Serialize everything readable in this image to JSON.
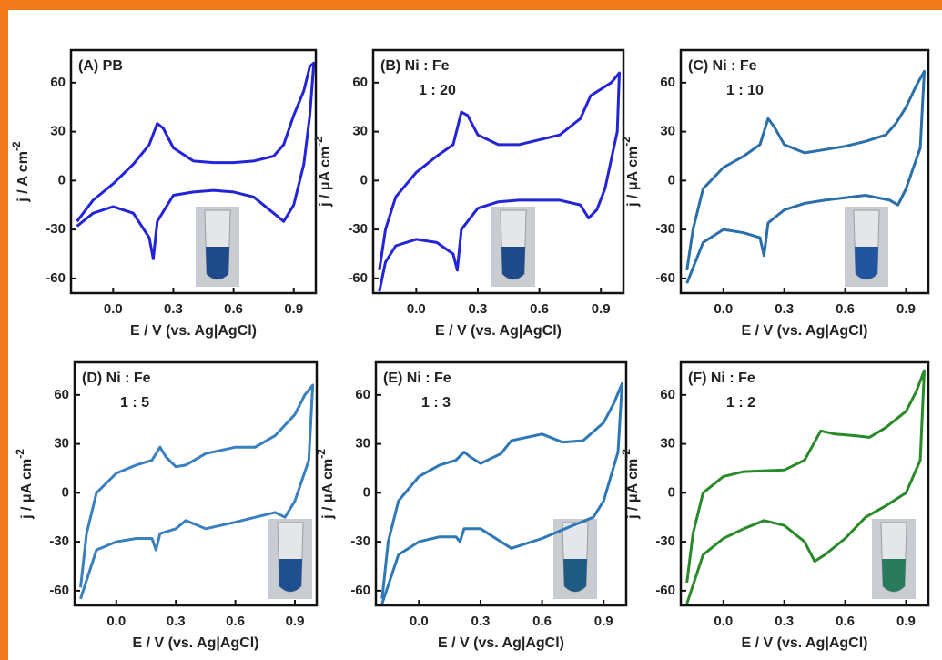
{
  "chart_data": [
    {
      "type": "line",
      "title": "(A) PB",
      "xlabel": "E / V (vs. Ag|AgCl)",
      "ylabel": "j / A cm",
      "ylabel_superscript": "-2",
      "xlim": [
        -0.21,
        1.01
      ],
      "ylim": [
        -69,
        80
      ],
      "xticks": [
        {
          "value": 0,
          "label": "0.0"
        },
        0.3,
        0.6,
        0.9
      ],
      "yticks": [
        -60,
        -30,
        0,
        30,
        60
      ],
      "series": [
        {
          "color": "#2323d8",
          "x": [
            -0.18,
            -0.1,
            0.0,
            0.1,
            0.18,
            0.22,
            0.25,
            0.3,
            0.4,
            0.5,
            0.6,
            0.7,
            0.8,
            0.85,
            0.9,
            0.95,
            0.98,
            1.0,
            0.98,
            0.95,
            0.9,
            0.85,
            0.82,
            0.7,
            0.6,
            0.5,
            0.4,
            0.3,
            0.22,
            0.2,
            0.18,
            0.1,
            0.0,
            -0.1,
            -0.18
          ],
          "values": [
            -25,
            -12,
            -2,
            10,
            22,
            35,
            32,
            20,
            12,
            11,
            11,
            12,
            15,
            22,
            40,
            55,
            70,
            72,
            40,
            10,
            -15,
            -25,
            -22,
            -10,
            -7,
            -6,
            -7,
            -9,
            -25,
            -48,
            -35,
            -20,
            -16,
            -20,
            -28
          ]
        }
      ]
    },
    {
      "type": "line",
      "title": "(B) Ni : Fe",
      "subtitle": "1 : 20",
      "xlabel": "E / V (vs. Ag|AgCl)",
      "ylabel": "j / μA cm",
      "ylabel_superscript": "-2",
      "xlim": [
        -0.21,
        1.01
      ],
      "ylim": [
        -69,
        80
      ],
      "xticks": [
        {
          "value": 0,
          "label": "0.0"
        },
        0.3,
        0.6,
        0.9
      ],
      "yticks": [
        -60,
        -30,
        0,
        30,
        60
      ],
      "series": [
        {
          "color": "#2323d8",
          "x": [
            -0.18,
            -0.15,
            -0.1,
            0.0,
            0.1,
            0.18,
            0.22,
            0.25,
            0.3,
            0.4,
            0.5,
            0.6,
            0.7,
            0.8,
            0.85,
            0.9,
            0.95,
            0.99,
            0.98,
            0.92,
            0.88,
            0.84,
            0.8,
            0.7,
            0.5,
            0.4,
            0.3,
            0.22,
            0.2,
            0.18,
            0.1,
            0.0,
            -0.1,
            -0.15,
            -0.18
          ],
          "values": [
            -55,
            -30,
            -10,
            5,
            15,
            22,
            42,
            40,
            28,
            22,
            22,
            25,
            28,
            38,
            52,
            56,
            60,
            66,
            30,
            -5,
            -18,
            -23,
            -15,
            -12,
            -12,
            -13,
            -17,
            -30,
            -55,
            -45,
            -38,
            -36,
            -40,
            -50,
            -68
          ]
        }
      ]
    },
    {
      "type": "line",
      "title": "(C) Ni : Fe",
      "subtitle": "1 : 10",
      "xlabel": "E / V (vs. Ag|AgCl)",
      "ylabel": "j / μA cm",
      "ylabel_superscript": "-2",
      "xlim": [
        -0.21,
        1.01
      ],
      "ylim": [
        -69,
        80
      ],
      "xticks": [
        {
          "value": 0,
          "label": "0.0"
        },
        0.3,
        0.6,
        0.9
      ],
      "yticks": [
        -60,
        -30,
        0,
        30,
        60
      ],
      "series": [
        {
          "color": "#2a6fa8",
          "x": [
            -0.18,
            -0.15,
            -0.1,
            0.0,
            0.1,
            0.18,
            0.22,
            0.25,
            0.3,
            0.4,
            0.5,
            0.6,
            0.7,
            0.8,
            0.85,
            0.9,
            0.95,
            0.99,
            0.97,
            0.9,
            0.86,
            0.82,
            0.7,
            0.5,
            0.4,
            0.3,
            0.22,
            0.2,
            0.18,
            0.1,
            0.0,
            -0.1,
            -0.18
          ],
          "values": [
            -55,
            -30,
            -5,
            8,
            15,
            22,
            38,
            33,
            22,
            17,
            19,
            21,
            24,
            28,
            35,
            45,
            58,
            67,
            20,
            -5,
            -15,
            -12,
            -9,
            -12,
            -14,
            -18,
            -26,
            -46,
            -35,
            -32,
            -30,
            -38,
            -63
          ]
        }
      ]
    },
    {
      "type": "line",
      "title": "(D) Ni : Fe",
      "subtitle": "1 : 5",
      "xlabel": "E / V (vs. Ag|AgCl)",
      "ylabel": "j / μA cm",
      "ylabel_superscript": "-2",
      "xlim": [
        -0.21,
        1.01
      ],
      "ylim": [
        -69,
        80
      ],
      "xticks": [
        {
          "value": 0,
          "label": "0.0"
        },
        0.3,
        0.6,
        0.9
      ],
      "yticks": [
        -60,
        -30,
        0,
        30,
        60
      ],
      "series": [
        {
          "color": "#3a7fbf",
          "x": [
            -0.18,
            -0.15,
            -0.1,
            0.0,
            0.1,
            0.18,
            0.22,
            0.25,
            0.3,
            0.35,
            0.45,
            0.6,
            0.7,
            0.8,
            0.9,
            0.95,
            0.99,
            0.97,
            0.9,
            0.85,
            0.8,
            0.7,
            0.6,
            0.45,
            0.35,
            0.3,
            0.22,
            0.2,
            0.18,
            0.1,
            0.0,
            -0.1,
            -0.18
          ],
          "values": [
            -58,
            -25,
            0,
            12,
            17,
            20,
            28,
            22,
            16,
            17,
            24,
            28,
            28,
            35,
            48,
            60,
            66,
            20,
            -5,
            -15,
            -12,
            -15,
            -18,
            -22,
            -17,
            -22,
            -25,
            -35,
            -28,
            -28,
            -30,
            -35,
            -65
          ]
        }
      ]
    },
    {
      "type": "line",
      "title": "(E) Ni : Fe",
      "subtitle": "1 : 3",
      "xlabel": "E / V (vs. Ag|AgCl)",
      "ylabel": "j / μA cm",
      "ylabel_superscript": "-2",
      "xlim": [
        -0.21,
        1.01
      ],
      "ylim": [
        -69,
        80
      ],
      "xticks": [
        {
          "value": 0,
          "label": "0.0"
        },
        0.3,
        0.6,
        0.9
      ],
      "yticks": [
        -60,
        -30,
        0,
        30,
        60
      ],
      "series": [
        {
          "color": "#2f78b8",
          "x": [
            -0.18,
            -0.15,
            -0.1,
            0.0,
            0.1,
            0.18,
            0.22,
            0.25,
            0.3,
            0.4,
            0.45,
            0.6,
            0.7,
            0.8,
            0.9,
            0.95,
            0.99,
            0.97,
            0.9,
            0.85,
            0.75,
            0.6,
            0.45,
            0.4,
            0.3,
            0.22,
            0.2,
            0.18,
            0.1,
            0.0,
            -0.1,
            -0.18
          ],
          "values": [
            -65,
            -30,
            -5,
            10,
            17,
            20,
            25,
            22,
            18,
            24,
            32,
            36,
            31,
            32,
            43,
            55,
            67,
            25,
            -5,
            -15,
            -20,
            -28,
            -34,
            -30,
            -22,
            -22,
            -30,
            -27,
            -27,
            -30,
            -38,
            -68
          ]
        }
      ]
    },
    {
      "type": "line",
      "title": "(F) Ni : Fe",
      "subtitle": "1 : 2",
      "xlabel": "E / V (vs. Ag|AgCl)",
      "ylabel": "j / μA cm",
      "ylabel_superscript": "-2",
      "xlim": [
        -0.21,
        1.01
      ],
      "ylim": [
        -69,
        80
      ],
      "xticks": [
        {
          "value": 0,
          "label": "0.0"
        },
        0.3,
        0.6,
        0.9
      ],
      "yticks": [
        -60,
        -30,
        0,
        30,
        60
      ],
      "series": [
        {
          "color": "#2a8a2a",
          "x": [
            -0.18,
            -0.15,
            -0.1,
            0.0,
            0.1,
            0.3,
            0.4,
            0.48,
            0.55,
            0.65,
            0.72,
            0.8,
            0.9,
            0.95,
            0.99,
            0.97,
            0.9,
            0.8,
            0.7,
            0.6,
            0.5,
            0.45,
            0.4,
            0.3,
            0.2,
            0.1,
            0.0,
            -0.1,
            -0.18
          ],
          "values": [
            -55,
            -25,
            0,
            10,
            13,
            14,
            20,
            38,
            36,
            35,
            34,
            40,
            50,
            62,
            75,
            20,
            0,
            -8,
            -15,
            -28,
            -38,
            -42,
            -30,
            -20,
            -17,
            -22,
            -28,
            -38,
            -68
          ]
        }
      ]
    }
  ]
}
